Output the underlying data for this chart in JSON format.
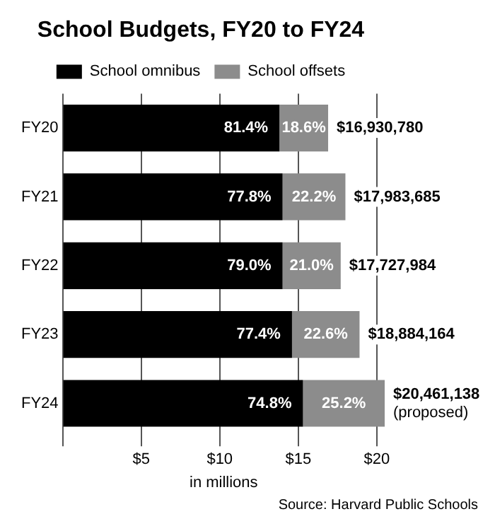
{
  "chart_data": {
    "type": "bar",
    "orientation": "horizontal",
    "stacked": true,
    "title": "School Budgets, FY20 to FY24",
    "xlabel": "in millions",
    "categories": [
      "FY20",
      "FY21",
      "FY22",
      "FY23",
      "FY24"
    ],
    "series": [
      {
        "name": "School omnibus",
        "color": "#000000",
        "values": [
          13.8,
          14.0,
          14.0,
          14.6,
          15.3
        ]
      },
      {
        "name": "School offsets",
        "color": "#8c8c8c",
        "values": [
          3.1,
          4.0,
          3.7,
          4.3,
          5.2
        ]
      }
    ],
    "xlim": [
      0,
      20.5
    ],
    "xticks": [
      {
        "value": 0,
        "label": null
      },
      {
        "value": 5,
        "label": "$5"
      },
      {
        "value": 10,
        "label": "$10"
      },
      {
        "value": 15,
        "label": "$15"
      },
      {
        "value": 20,
        "label": "$20"
      }
    ],
    "grid": "x",
    "legend": "top",
    "annotations": [
      {
        "text": "81.4%",
        "x": 13.8,
        "y": "FY20"
      },
      {
        "text": "77.8%",
        "x": 14.0,
        "y": "FY21"
      },
      {
        "text": "79.0%",
        "x": 14.0,
        "y": "FY22"
      },
      {
        "text": "77.4%",
        "x": 14.6,
        "y": "FY23"
      },
      {
        "text": "74.8%",
        "x": 15.3,
        "y": "FY24"
      },
      {
        "text": "18.6%",
        "x": 16.9,
        "y": "FY20"
      },
      {
        "text": "22.2%",
        "x": 18.0,
        "y": "FY21"
      },
      {
        "text": "21.0%",
        "x": 17.7,
        "y": "FY22"
      },
      {
        "text": "22.6%",
        "x": 18.9,
        "y": "FY23"
      },
      {
        "text": "25.2%",
        "x": 20.5,
        "y": "FY24"
      },
      {
        "text": "$16,930,780",
        "x": 16.9,
        "y": "FY20"
      },
      {
        "text": "$17,983,685",
        "x": 18.0,
        "y": "FY21"
      },
      {
        "text": "$17,727,984",
        "x": 17.7,
        "y": "FY22"
      },
      {
        "text": "$18,884,164",
        "x": 18.9,
        "y": "FY23"
      },
      {
        "text": "$20,461,138\n(proposed)",
        "x": 20.5,
        "y": "FY24"
      },
      "Source: Harvard Public Schools"
    ]
  }
}
